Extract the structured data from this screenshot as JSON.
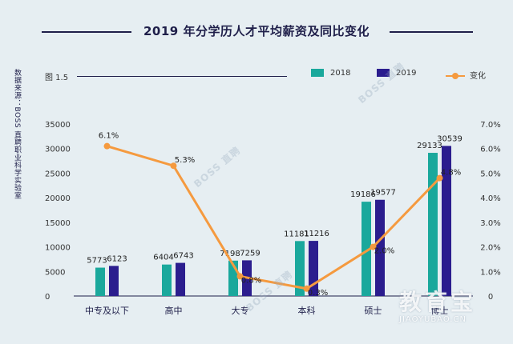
{
  "header": {
    "title": "2019 年分学历人才平均薪资及同比变化"
  },
  "source": "数据来源：BOSS 直聘职业科学实验室",
  "figure_label": "图 1.5",
  "colors": {
    "s2018": "#1aa89c",
    "s2019": "#2b1d8e",
    "change": "#f59a3f",
    "text": "#1f1f4a"
  },
  "watermark": "BOSS 直聘",
  "logo": {
    "main": "教育宝",
    "sub": "JIAOYUBAO.CN"
  },
  "chart_data": {
    "type": "bar",
    "title": "2019 年分学历人才平均薪资及同比变化",
    "categories": [
      "中专及以下",
      "高中",
      "大专",
      "本科",
      "硕士",
      "博士"
    ],
    "series": [
      {
        "name": "2018",
        "values": [
          5773,
          6404,
          7198,
          11181,
          19186,
          29133
        ]
      },
      {
        "name": "2019",
        "values": [
          6123,
          6743,
          7259,
          11216,
          19577,
          30539
        ]
      }
    ],
    "line": {
      "name": "变化",
      "values": [
        6.1,
        5.3,
        0.8,
        0.3,
        2.0,
        4.8
      ],
      "labels": [
        "6.1%",
        "5.3%",
        "0.8%",
        "0.3%",
        "2.0%",
        "4.8%"
      ]
    },
    "y_left": {
      "ticks": [
        0,
        5000,
        10000,
        15000,
        20000,
        25000,
        30000,
        35000
      ],
      "range": [
        0,
        35000
      ]
    },
    "y_right": {
      "ticks": [
        0,
        1,
        2,
        3,
        4,
        5,
        6,
        7
      ],
      "tick_labels": [
        "0",
        "1.0%",
        "2.0%",
        "3.0%",
        "4.0%",
        "5.0%",
        "6.0%",
        "7.0%"
      ],
      "range": [
        0,
        7
      ]
    },
    "legend": "top-right"
  }
}
